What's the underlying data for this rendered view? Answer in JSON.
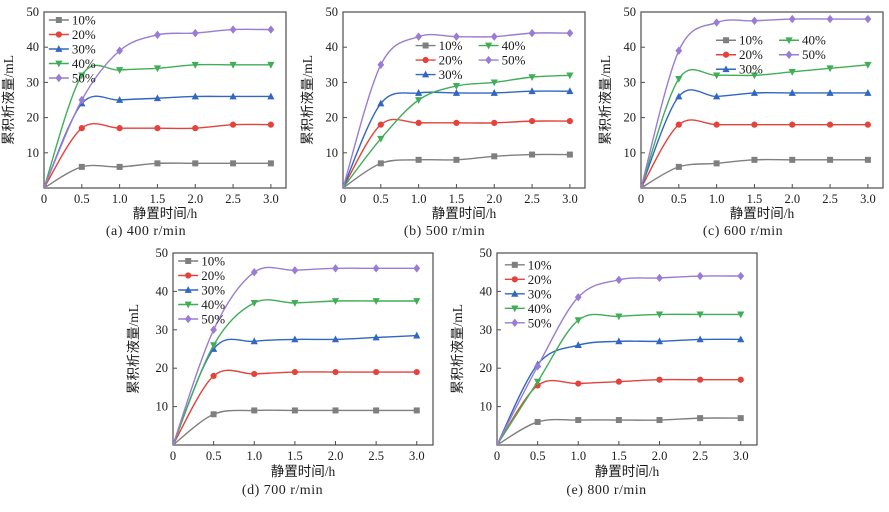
{
  "figure": {
    "background": "#ffffff",
    "text_color": "#1a1a1a",
    "axis_color": "#4d4d4d"
  },
  "series_meta": {
    "names": [
      "10%",
      "20%",
      "30%",
      "40%",
      "50%"
    ],
    "colors": [
      "#7f7f7f",
      "#e5423b",
      "#3166c2",
      "#3fae56",
      "#9a7cd4"
    ],
    "markers": [
      "square",
      "circle",
      "triangle-up",
      "triangle-down",
      "diamond"
    ]
  },
  "axes": {
    "xlabel": "静置时间/h",
    "ylabel": "累积析液量/mL",
    "xlim": [
      0,
      3.2
    ],
    "ylim": [
      0,
      50
    ],
    "xticks": [
      0,
      0.5,
      1.0,
      1.5,
      2.0,
      2.5,
      3.0
    ],
    "xtick_labels": [
      "0",
      "0.5",
      "1.0",
      "1.5",
      "2.0",
      "2.5",
      "3.0"
    ],
    "yticks": [
      10,
      20,
      30,
      40,
      50
    ],
    "grid": false
  },
  "chart_data": [
    {
      "id": "a",
      "type": "line",
      "caption": "(a) 400 r/min",
      "x": [
        0,
        0.5,
        1.0,
        1.5,
        2.0,
        2.5,
        3.0
      ],
      "series": [
        {
          "name": "10%",
          "values": [
            0,
            6,
            6,
            7,
            7,
            7,
            7
          ]
        },
        {
          "name": "20%",
          "values": [
            0,
            17,
            17,
            17,
            17,
            18,
            18
          ]
        },
        {
          "name": "30%",
          "values": [
            0,
            24,
            25,
            25.5,
            26,
            26,
            26
          ]
        },
        {
          "name": "40%",
          "values": [
            0,
            32,
            33.5,
            34,
            35,
            35,
            35
          ]
        },
        {
          "name": "50%",
          "values": [
            0,
            25,
            39,
            43.5,
            44,
            45,
            45
          ]
        }
      ],
      "legend": {
        "columns": 1,
        "x": 0.02,
        "y": 0.0
      }
    },
    {
      "id": "b",
      "type": "line",
      "caption": "(b) 500 r/min",
      "x": [
        0,
        0.5,
        1.0,
        1.5,
        2.0,
        2.5,
        3.0
      ],
      "series": [
        {
          "name": "10%",
          "values": [
            0,
            7,
            8,
            8,
            9,
            9.5,
            9.5
          ]
        },
        {
          "name": "20%",
          "values": [
            0,
            18,
            18.5,
            18.5,
            18.5,
            19,
            19
          ]
        },
        {
          "name": "30%",
          "values": [
            0,
            24,
            27,
            27,
            27,
            27.5,
            27.5
          ]
        },
        {
          "name": "40%",
          "values": [
            0,
            14,
            25,
            29,
            30,
            31.5,
            32
          ]
        },
        {
          "name": "50%",
          "values": [
            0,
            35,
            43,
            43,
            43,
            44,
            44
          ]
        }
      ],
      "legend": {
        "columns": 2,
        "x": 0.3,
        "y": 0.145
      }
    },
    {
      "id": "c",
      "type": "line",
      "caption": "(c) 600 r/min",
      "x": [
        0,
        0.5,
        1.0,
        1.5,
        2.0,
        2.5,
        3.0
      ],
      "series": [
        {
          "name": "10%",
          "values": [
            0,
            6,
            7,
            8,
            8,
            8,
            8
          ]
        },
        {
          "name": "20%",
          "values": [
            0,
            18,
            18,
            18,
            18,
            18,
            18
          ]
        },
        {
          "name": "30%",
          "values": [
            0,
            26,
            26,
            27,
            27,
            27,
            27
          ]
        },
        {
          "name": "40%",
          "values": [
            0,
            31,
            32,
            32,
            33,
            34,
            35
          ]
        },
        {
          "name": "50%",
          "values": [
            0,
            39,
            47,
            47.5,
            48,
            48,
            48
          ]
        }
      ],
      "legend": {
        "columns": 2,
        "x": 0.31,
        "y": 0.115
      }
    },
    {
      "id": "d",
      "type": "line",
      "caption": "(d) 700 r/min",
      "x": [
        0,
        0.5,
        1.0,
        1.5,
        2.0,
        2.5,
        3.0
      ],
      "series": [
        {
          "name": "10%",
          "values": [
            0,
            8,
            9,
            9,
            9,
            9,
            9
          ]
        },
        {
          "name": "20%",
          "values": [
            0,
            18,
            18.5,
            19,
            19,
            19,
            19
          ]
        },
        {
          "name": "30%",
          "values": [
            0,
            25,
            27,
            27.5,
            27.5,
            28,
            28.5
          ]
        },
        {
          "name": "40%",
          "values": [
            0,
            26,
            37,
            37,
            37.5,
            37.5,
            37.5
          ]
        },
        {
          "name": "50%",
          "values": [
            0,
            30,
            45,
            45.5,
            46,
            46,
            46
          ]
        }
      ],
      "legend": {
        "columns": 1,
        "x": 0.02,
        "y": 0.0
      }
    },
    {
      "id": "e",
      "type": "line",
      "caption": "(e) 800 r/min",
      "x": [
        0,
        0.5,
        1.0,
        1.5,
        2.0,
        2.5,
        3.0
      ],
      "series": [
        {
          "name": "10%",
          "values": [
            0,
            6,
            6.5,
            6.5,
            6.5,
            7,
            7
          ]
        },
        {
          "name": "20%",
          "values": [
            0,
            15.5,
            16,
            16.5,
            17,
            17,
            17
          ]
        },
        {
          "name": "30%",
          "values": [
            0,
            21,
            26,
            27,
            27,
            27.5,
            27.5
          ]
        },
        {
          "name": "40%",
          "values": [
            0,
            16.5,
            32.5,
            33.5,
            34,
            34,
            34
          ]
        },
        {
          "name": "50%",
          "values": [
            0,
            20.5,
            38.5,
            43,
            43.5,
            44,
            44
          ]
        }
      ],
      "legend": {
        "columns": 1,
        "x": 0.03,
        "y": 0.02
      }
    }
  ]
}
